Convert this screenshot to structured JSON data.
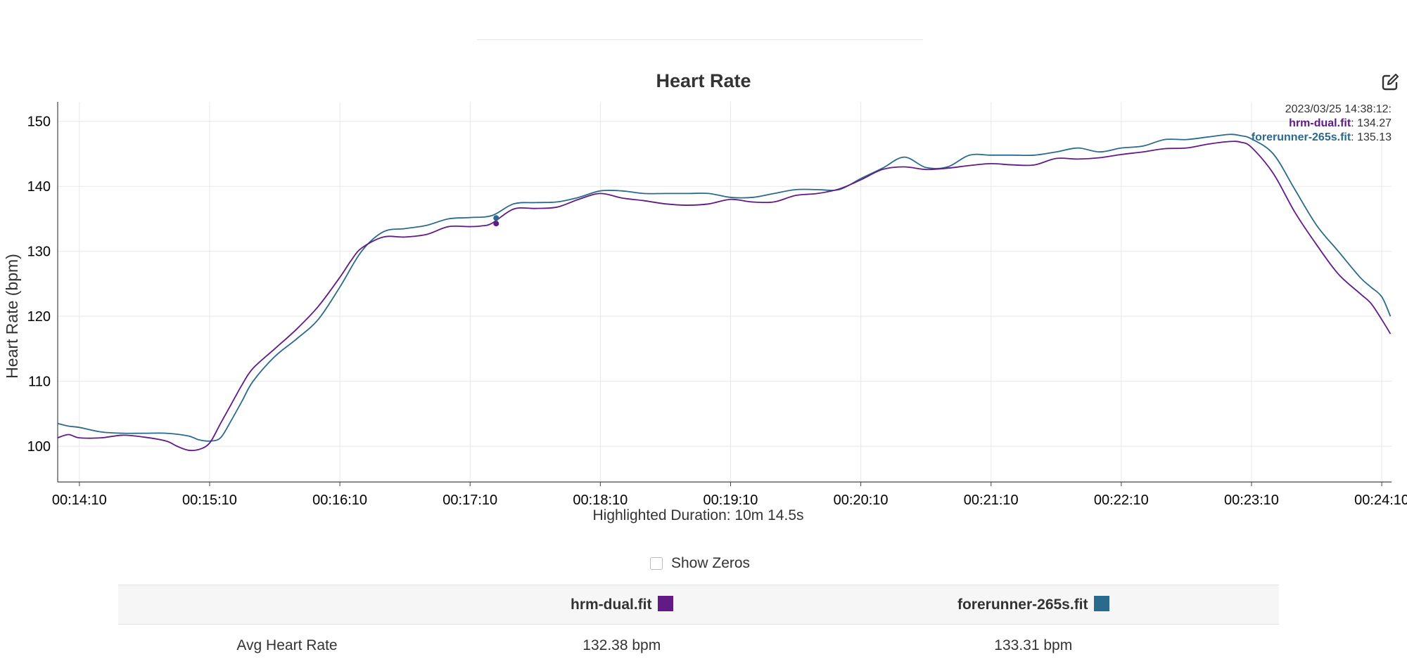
{
  "colors": {
    "series_1": "#621a87",
    "series_2": "#2a6a8c",
    "grid": "#e8e8e8",
    "axis": "#444444"
  },
  "chart_data": {
    "type": "line",
    "title": "Heart Rate",
    "ylabel": "Heart Rate (bpm)",
    "xlabel": "",
    "ylim": [
      94.5,
      153
    ],
    "xlim": [
      "00:14:00",
      "00:24:14.5"
    ],
    "yticks": [
      100,
      110,
      120,
      130,
      140,
      150
    ],
    "xticks": [
      "00:14:10",
      "00:15:10",
      "00:16:10",
      "00:17:10",
      "00:18:10",
      "00:19:10",
      "00:20:10",
      "00:21:10",
      "00:22:10",
      "00:23:10",
      "00:24:10"
    ],
    "grid": true,
    "series": [
      {
        "name": "hrm-dual.fit",
        "color": "#621a87",
        "x": [
          "00:14:00",
          "00:14:05",
          "00:14:10",
          "00:14:20",
          "00:14:30",
          "00:14:40",
          "00:14:50",
          "00:14:55",
          "00:15:00",
          "00:15:05",
          "00:15:10",
          "00:15:15",
          "00:15:20",
          "00:15:25",
          "00:15:30",
          "00:15:40",
          "00:15:50",
          "00:16:00",
          "00:16:10",
          "00:16:15",
          "00:16:20",
          "00:16:30",
          "00:16:40",
          "00:16:50",
          "00:17:00",
          "00:17:10",
          "00:17:15",
          "00:17:20",
          "00:17:30",
          "00:17:40",
          "00:17:50",
          "00:18:00",
          "00:18:10",
          "00:18:20",
          "00:18:30",
          "00:18:40",
          "00:18:50",
          "00:19:00",
          "00:19:10",
          "00:19:20",
          "00:19:30",
          "00:19:40",
          "00:19:50",
          "00:20:00",
          "00:20:10",
          "00:20:20",
          "00:20:30",
          "00:20:40",
          "00:20:50",
          "00:21:00",
          "00:21:10",
          "00:21:20",
          "00:21:30",
          "00:21:40",
          "00:21:50",
          "00:22:00",
          "00:22:10",
          "00:22:20",
          "00:22:30",
          "00:22:40",
          "00:22:50",
          "00:23:00",
          "00:23:05",
          "00:23:10",
          "00:23:20",
          "00:23:30",
          "00:23:40",
          "00:23:50",
          "00:24:00",
          "00:24:05",
          "00:24:10",
          "00:24:14"
        ],
        "values": [
          101.3,
          101.8,
          101.3,
          101.3,
          101.7,
          101.4,
          100.8,
          100.0,
          99.4,
          99.5,
          100.5,
          103.5,
          106.5,
          109.5,
          112.0,
          115.0,
          118.0,
          121.5,
          126.0,
          128.5,
          130.5,
          132.2,
          132.2,
          132.6,
          133.8,
          133.8,
          133.9,
          134.3,
          136.5,
          136.6,
          136.8,
          138.0,
          138.9,
          138.2,
          137.8,
          137.3,
          137.1,
          137.3,
          138.0,
          137.6,
          137.6,
          138.6,
          138.9,
          139.6,
          141.0,
          142.6,
          143.0,
          142.6,
          142.8,
          143.2,
          143.5,
          143.3,
          143.3,
          144.3,
          144.2,
          144.4,
          144.9,
          145.3,
          145.8,
          145.9,
          146.5,
          146.9,
          146.8,
          146.0,
          142.0,
          136.0,
          131.0,
          126.5,
          123.5,
          122.0,
          119.5,
          117.3
        ]
      },
      {
        "name": "forerunner-265s.fit",
        "color": "#2a6a8c",
        "x": [
          "00:14:00",
          "00:14:05",
          "00:14:10",
          "00:14:20",
          "00:14:30",
          "00:14:40",
          "00:14:50",
          "00:15:00",
          "00:15:05",
          "00:15:10",
          "00:15:15",
          "00:15:20",
          "00:15:25",
          "00:15:30",
          "00:15:40",
          "00:15:50",
          "00:16:00",
          "00:16:10",
          "00:16:20",
          "00:16:30",
          "00:16:40",
          "00:16:50",
          "00:17:00",
          "00:17:10",
          "00:17:20",
          "00:17:30",
          "00:17:40",
          "00:17:50",
          "00:18:00",
          "00:18:10",
          "00:18:20",
          "00:18:30",
          "00:18:40",
          "00:18:50",
          "00:19:00",
          "00:19:10",
          "00:19:20",
          "00:19:30",
          "00:19:40",
          "00:19:50",
          "00:20:00",
          "00:20:10",
          "00:20:20",
          "00:20:30",
          "00:20:40",
          "00:20:50",
          "00:21:00",
          "00:21:10",
          "00:21:20",
          "00:21:30",
          "00:21:40",
          "00:21:50",
          "00:22:00",
          "00:22:10",
          "00:22:20",
          "00:22:30",
          "00:22:40",
          "00:22:50",
          "00:23:00",
          "00:23:05",
          "00:23:10",
          "00:23:20",
          "00:23:30",
          "00:23:40",
          "00:23:50",
          "00:24:00",
          "00:24:05",
          "00:24:10",
          "00:24:14"
        ],
        "values": [
          103.5,
          103.1,
          102.9,
          102.2,
          102.0,
          102.0,
          102.0,
          101.6,
          101.0,
          100.8,
          101.3,
          104.0,
          107.0,
          110.0,
          113.8,
          116.5,
          119.5,
          124.5,
          130.0,
          133.0,
          133.5,
          134.0,
          135.0,
          135.2,
          135.5,
          137.3,
          137.5,
          137.6,
          138.3,
          139.3,
          139.3,
          138.9,
          138.9,
          138.9,
          138.9,
          138.3,
          138.3,
          138.9,
          139.5,
          139.5,
          139.5,
          141.2,
          142.8,
          144.5,
          142.9,
          143.0,
          144.8,
          144.8,
          144.8,
          144.8,
          145.3,
          145.9,
          145.3,
          145.9,
          146.2,
          147.2,
          147.2,
          147.6,
          148.0,
          147.8,
          147.3,
          145.0,
          139.5,
          134.0,
          130.0,
          126.0,
          124.5,
          123.0,
          120.0
        ]
      }
    ]
  },
  "tooltip": {
    "timestamp": "2023/03/25 14:38:12:",
    "entries": [
      {
        "name": "hrm-dual.fit",
        "value": ": 134.27"
      },
      {
        "name": "forerunner-265s.fit",
        "value": ": 135.13"
      }
    ],
    "marker_x": "00:17:22"
  },
  "highlighted_duration": "Highlighted Duration: 10m 14.5s",
  "show_zeros_label": "Show Zeros",
  "table": {
    "headers": [
      "",
      "hrm-dual.fit",
      "forerunner-265s.fit"
    ],
    "rows": [
      {
        "label": "Avg Heart Rate",
        "values": [
          "132.38 bpm",
          "133.31 bpm"
        ]
      }
    ]
  },
  "icons": {
    "edit": "edit-square-icon",
    "checkbox": "checkbox-unchecked-icon"
  }
}
